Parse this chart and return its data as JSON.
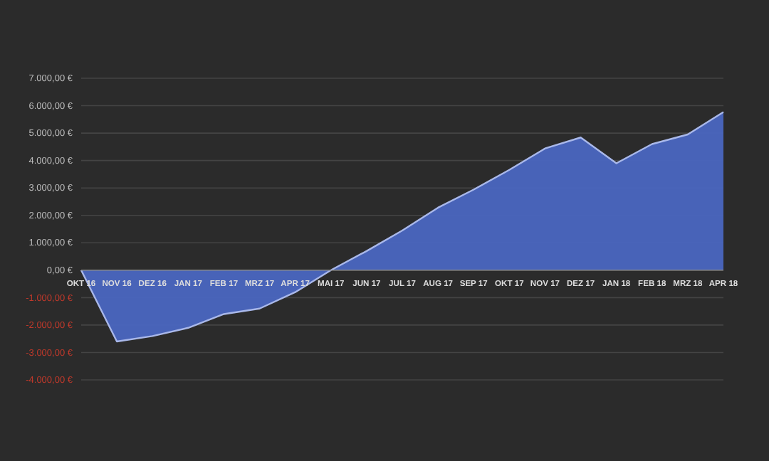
{
  "chart_data": {
    "type": "area",
    "categories": [
      "OKT 16",
      "NOV 16",
      "DEZ 16",
      "JAN 17",
      "FEB 17",
      "MRZ 17",
      "APR 17",
      "MAI 17",
      "JUN 17",
      "JUL 17",
      "AUG 17",
      "SEP 17",
      "OKT 17",
      "NOV 17",
      "DEZ 17",
      "JAN 18",
      "FEB 18",
      "MRZ 18",
      "APR 18"
    ],
    "series": [
      {
        "color": "#4a66c0",
        "values": [
          0,
          -2600,
          -2400,
          -2100,
          -1600,
          -1400,
          -800,
          0,
          700,
          1450,
          2280,
          2940,
          3660,
          4440,
          4840,
          3900,
          4600,
          4950,
          5770
        ]
      }
    ],
    "ylim": [
      -4000,
      7000
    ],
    "yticks": [
      {
        "value": -4000,
        "label": "-4.000,00 €"
      },
      {
        "value": -3000,
        "label": "-3.000,00 €"
      },
      {
        "value": -2000,
        "label": "-2.000,00 €"
      },
      {
        "value": -1000,
        "label": "-1.000,00 €"
      },
      {
        "value": 0,
        "label": "0,00 €"
      },
      {
        "value": 1000,
        "label": "1.000,00 €"
      },
      {
        "value": 2000,
        "label": "2.000,00 €"
      },
      {
        "value": 3000,
        "label": "3.000,00 €"
      },
      {
        "value": 4000,
        "label": "4.000,00 €"
      },
      {
        "value": 5000,
        "label": "5.000,00 €"
      },
      {
        "value": 6000,
        "label": "6.000,00 €"
      },
      {
        "value": 7000,
        "label": "7.000,00 €"
      }
    ],
    "grid": "y"
  }
}
